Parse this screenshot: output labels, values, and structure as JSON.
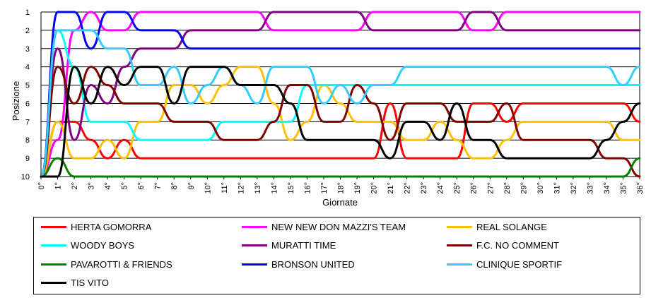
{
  "chart_data": {
    "type": "line",
    "title": "",
    "xlabel": "Giornate",
    "ylabel": "Posizione",
    "ylim": [
      1,
      10
    ],
    "y_inverted": true,
    "grid": "horizontal",
    "legend_position": "bottom",
    "categories": [
      "0°",
      "1°",
      "2°",
      "3°",
      "4°",
      "5°",
      "6°",
      "7°",
      "8°",
      "9°",
      "10°",
      "11°",
      "12°",
      "13°",
      "14°",
      "15°",
      "16°",
      "17°",
      "18°",
      "19°",
      "20°",
      "21°",
      "22°",
      "23°",
      "24°",
      "25°",
      "26°",
      "27°",
      "28°",
      "29°",
      "30°",
      "31°",
      "32°",
      "33°",
      "34°",
      "35°",
      "36°"
    ],
    "y_ticks": [
      1,
      2,
      3,
      4,
      5,
      6,
      7,
      8,
      9,
      10
    ],
    "series": [
      {
        "name": "HERTA GOMORRA",
        "color": "#ff0000",
        "values": [
          10,
          7,
          7,
          8,
          9,
          8,
          9,
          9,
          9,
          9,
          9,
          9,
          9,
          9,
          9,
          9,
          9,
          9,
          9,
          9,
          9,
          6,
          9,
          9,
          9,
          9,
          6,
          6,
          7,
          6,
          6,
          6,
          6,
          6,
          6,
          6,
          7
        ]
      },
      {
        "name": "NEW NEW DON MAZZI'S TEAM",
        "color": "#ff00ff",
        "values": [
          10,
          8,
          2,
          1,
          2,
          2,
          1,
          1,
          1,
          1,
          1,
          1,
          1,
          1,
          2,
          2,
          2,
          2,
          2,
          2,
          1,
          1,
          1,
          1,
          1,
          1,
          2,
          2,
          1,
          1,
          1,
          1,
          1,
          1,
          1,
          1,
          1
        ]
      },
      {
        "name": "REAL SOLANGE",
        "color": "#ffc000",
        "values": [
          10,
          7,
          9,
          9,
          8,
          9,
          7,
          7,
          5,
          5,
          6,
          5,
          4,
          4,
          6,
          8,
          7,
          5,
          6,
          7,
          7,
          7,
          8,
          8,
          7,
          8,
          9,
          9,
          8,
          7,
          7,
          7,
          7,
          7,
          7,
          8,
          8
        ]
      },
      {
        "name": "WOODY BOYS",
        "color": "#00ffff",
        "values": [
          10,
          2,
          4,
          7,
          7,
          7,
          8,
          8,
          8,
          8,
          8,
          7,
          7,
          7,
          7,
          7,
          5,
          5,
          5,
          5,
          5,
          5,
          5,
          5,
          5,
          5,
          5,
          5,
          5,
          5,
          5,
          5,
          5,
          5,
          5,
          5,
          5
        ]
      },
      {
        "name": "MURATTI TIME",
        "color": "#800080",
        "values": [
          10,
          3,
          8,
          5,
          6,
          4,
          3,
          3,
          3,
          2,
          2,
          2,
          2,
          2,
          1,
          1,
          1,
          1,
          1,
          1,
          2,
          2,
          2,
          2,
          2,
          2,
          1,
          1,
          2,
          2,
          2,
          2,
          2,
          2,
          2,
          2,
          2
        ]
      },
      {
        "name": "F.C. NO COMMENT",
        "color": "#800000",
        "values": [
          10,
          4,
          6,
          4,
          5,
          6,
          6,
          6,
          7,
          7,
          7,
          8,
          8,
          8,
          7,
          5,
          5,
          7,
          7,
          5,
          6,
          8,
          6,
          6,
          6,
          7,
          7,
          7,
          6,
          8,
          8,
          8,
          8,
          8,
          9,
          9,
          10
        ]
      },
      {
        "name": "PAVAROTTI & FRIENDS",
        "color": "#008000",
        "values": [
          10,
          9,
          10,
          10,
          10,
          10,
          10,
          10,
          10,
          10,
          10,
          10,
          10,
          10,
          10,
          10,
          10,
          10,
          10,
          10,
          10,
          10,
          10,
          10,
          10,
          10,
          10,
          10,
          10,
          10,
          10,
          10,
          10,
          10,
          10,
          10,
          9
        ]
      },
      {
        "name": "BRONSON UNITED",
        "color": "#0000ff",
        "values": [
          10,
          1,
          1,
          3,
          1,
          1,
          2,
          2,
          2,
          3,
          3,
          3,
          3,
          3,
          3,
          3,
          3,
          3,
          3,
          3,
          3,
          3,
          3,
          3,
          3,
          3,
          3,
          3,
          3,
          3,
          3,
          3,
          3,
          3,
          3,
          3,
          3
        ]
      },
      {
        "name": "CLINIQUE SPORTIF",
        "color": "#33ccff",
        "values": [
          10,
          2,
          2,
          2,
          3,
          3,
          5,
          5,
          4,
          6,
          5,
          4,
          5,
          6,
          4,
          4,
          4,
          6,
          5,
          6,
          5,
          5,
          4,
          4,
          4,
          4,
          4,
          4,
          4,
          4,
          4,
          4,
          4,
          4,
          4,
          5,
          4
        ]
      },
      {
        "name": "TIS VITO",
        "color": "#000000",
        "values": [
          10,
          10,
          4,
          6,
          4,
          5,
          4,
          4,
          6,
          4,
          4,
          4,
          5,
          5,
          5,
          6,
          8,
          8,
          8,
          8,
          8,
          9,
          7,
          7,
          8,
          6,
          8,
          8,
          9,
          9,
          9,
          9,
          9,
          9,
          8,
          7,
          6
        ]
      }
    ]
  }
}
